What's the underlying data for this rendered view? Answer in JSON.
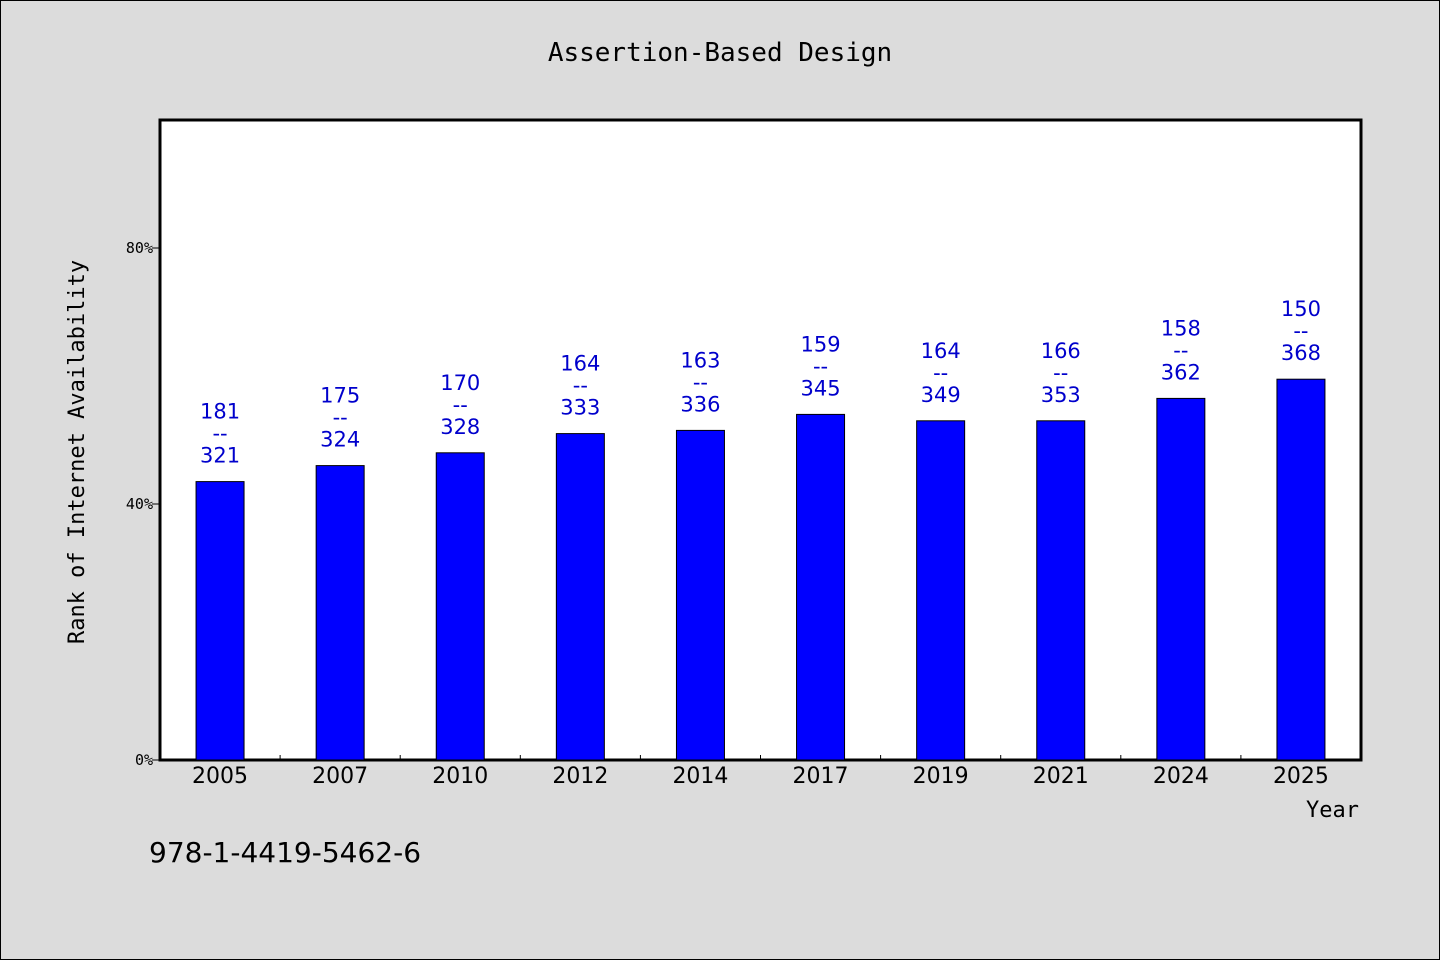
{
  "chart_data": {
    "type": "bar",
    "title": "Assertion-Based Design",
    "xlabel": "Year",
    "ylabel": "Rank of Internet Availability",
    "categories": [
      "2005",
      "2007",
      "2010",
      "2012",
      "2014",
      "2017",
      "2019",
      "2021",
      "2024",
      "2025"
    ],
    "values": [
      43.5,
      46,
      48,
      51,
      51.5,
      54,
      53,
      53,
      56.5,
      59.5
    ],
    "data_labels": [
      [
        "181",
        "--",
        "321"
      ],
      [
        "175",
        "--",
        "324"
      ],
      [
        "170",
        "--",
        "328"
      ],
      [
        "164",
        "--",
        "333"
      ],
      [
        "163",
        "--",
        "336"
      ],
      [
        "159",
        "--",
        "345"
      ],
      [
        "164",
        "--",
        "349"
      ],
      [
        "166",
        "--",
        "353"
      ],
      [
        "158",
        "--",
        "362"
      ],
      [
        "150",
        "--",
        "368"
      ]
    ],
    "yticks": [
      0,
      40,
      80
    ],
    "ytick_labels": [
      "0%",
      "40%",
      "80%"
    ],
    "ylim": [
      0,
      100
    ],
    "grid": false,
    "bar_color": "#0000ff",
    "label_color": "#0000cc"
  },
  "footer_text": "978-1-4419-5462-6"
}
